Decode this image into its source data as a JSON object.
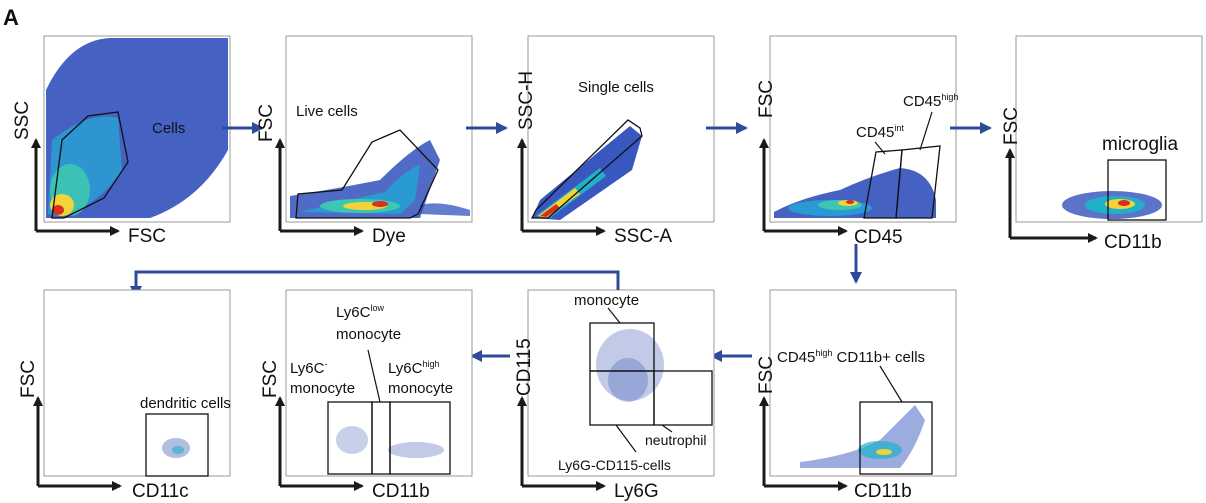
{
  "figure_label": "A",
  "panels": [
    {
      "id": "p1",
      "x_label": "FSC",
      "y_label": "SSC",
      "gate_label": "Cells"
    },
    {
      "id": "p2",
      "x_label": "Dye",
      "y_label": "FSC",
      "gate_label": "Live cells"
    },
    {
      "id": "p3",
      "x_label": "SSC-A",
      "y_label": "SSC-H",
      "gate_label": "Single cells"
    },
    {
      "id": "p4",
      "x_label": "CD45",
      "y_label": "FSC",
      "gate_int_base": "CD45",
      "gate_int_sup": "int",
      "gate_high_base": "CD45",
      "gate_high_sup": "high"
    },
    {
      "id": "p5",
      "x_label": "CD11b",
      "y_label": "FSC",
      "gate_label": "microglia"
    },
    {
      "id": "p6",
      "x_label": "CD11b",
      "y_label": "FSC",
      "gate_base": "CD45",
      "gate_sup": "high",
      "gate_rest": " CD11b+ cells"
    },
    {
      "id": "p7",
      "x_label": "Ly6G",
      "y_label": "CD115",
      "gate_monocyte": "monocyte",
      "gate_neutrophil": "neutrophil",
      "gate_neg": "Ly6G-CD115-cells"
    },
    {
      "id": "p8",
      "x_label": "CD11b",
      "y_label": "FSC",
      "low_base": "Ly6C",
      "low_sup": "low",
      "low_word": "monocyte",
      "neg_base": "Ly6C",
      "neg_sup": "-",
      "neg_word": "monocyte",
      "high_base": "Ly6C",
      "high_sup": "high",
      "high_word": "monocyte"
    },
    {
      "id": "p9",
      "x_label": "CD11c",
      "y_label": "FSC",
      "gate_label": "dendritic cells"
    }
  ],
  "colors": {
    "arrow": "#2f4a9a",
    "axis": "#1a1a1a",
    "density_low": "#1f3fa8",
    "density_mid": "#21b0c9",
    "density_high": "#f7d335",
    "density_peak": "#d7301f"
  }
}
